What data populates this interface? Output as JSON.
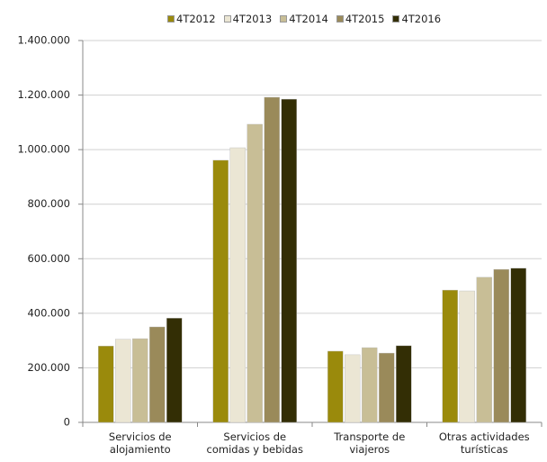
{
  "chart_data": {
    "type": "bar",
    "categories": [
      "Servicios de\nalojamiento",
      "Servicios de\ncomidas y bebidas",
      "Transporte de\nviajeros",
      "Otras actividades\nturísticas"
    ],
    "series": [
      {
        "name": "4T2012",
        "color": "#9a8a0c",
        "values": [
          280000,
          961000,
          261000,
          485000
        ]
      },
      {
        "name": "4T2013",
        "color": "#ebe6d4",
        "values": [
          305000,
          1007000,
          248000,
          482000
        ]
      },
      {
        "name": "4T2014",
        "color": "#c8be96",
        "values": [
          307000,
          1093000,
          274000,
          532000
        ]
      },
      {
        "name": "4T2015",
        "color": "#9a8a5a",
        "values": [
          350000,
          1192000,
          254000,
          561000
        ]
      },
      {
        "name": "4T2016",
        "color": "#332e05",
        "values": [
          382000,
          1185000,
          281000,
          565000
        ]
      }
    ],
    "ylim": [
      0,
      1400000
    ],
    "yticks": [
      0,
      {
        "value": 200000,
        "label": "200.000"
      },
      {
        "value": 400000,
        "label": "400.000"
      },
      {
        "value": 600000,
        "label": "600.000"
      },
      {
        "value": 800000,
        "label": "800.000"
      },
      {
        "value": 1000000,
        "label": "1.000.000"
      },
      {
        "value": 1200000,
        "label": "1.200.000"
      },
      {
        "value": 1400000,
        "label": "1.400.000"
      }
    ],
    "grid": true,
    "legend": "top"
  }
}
